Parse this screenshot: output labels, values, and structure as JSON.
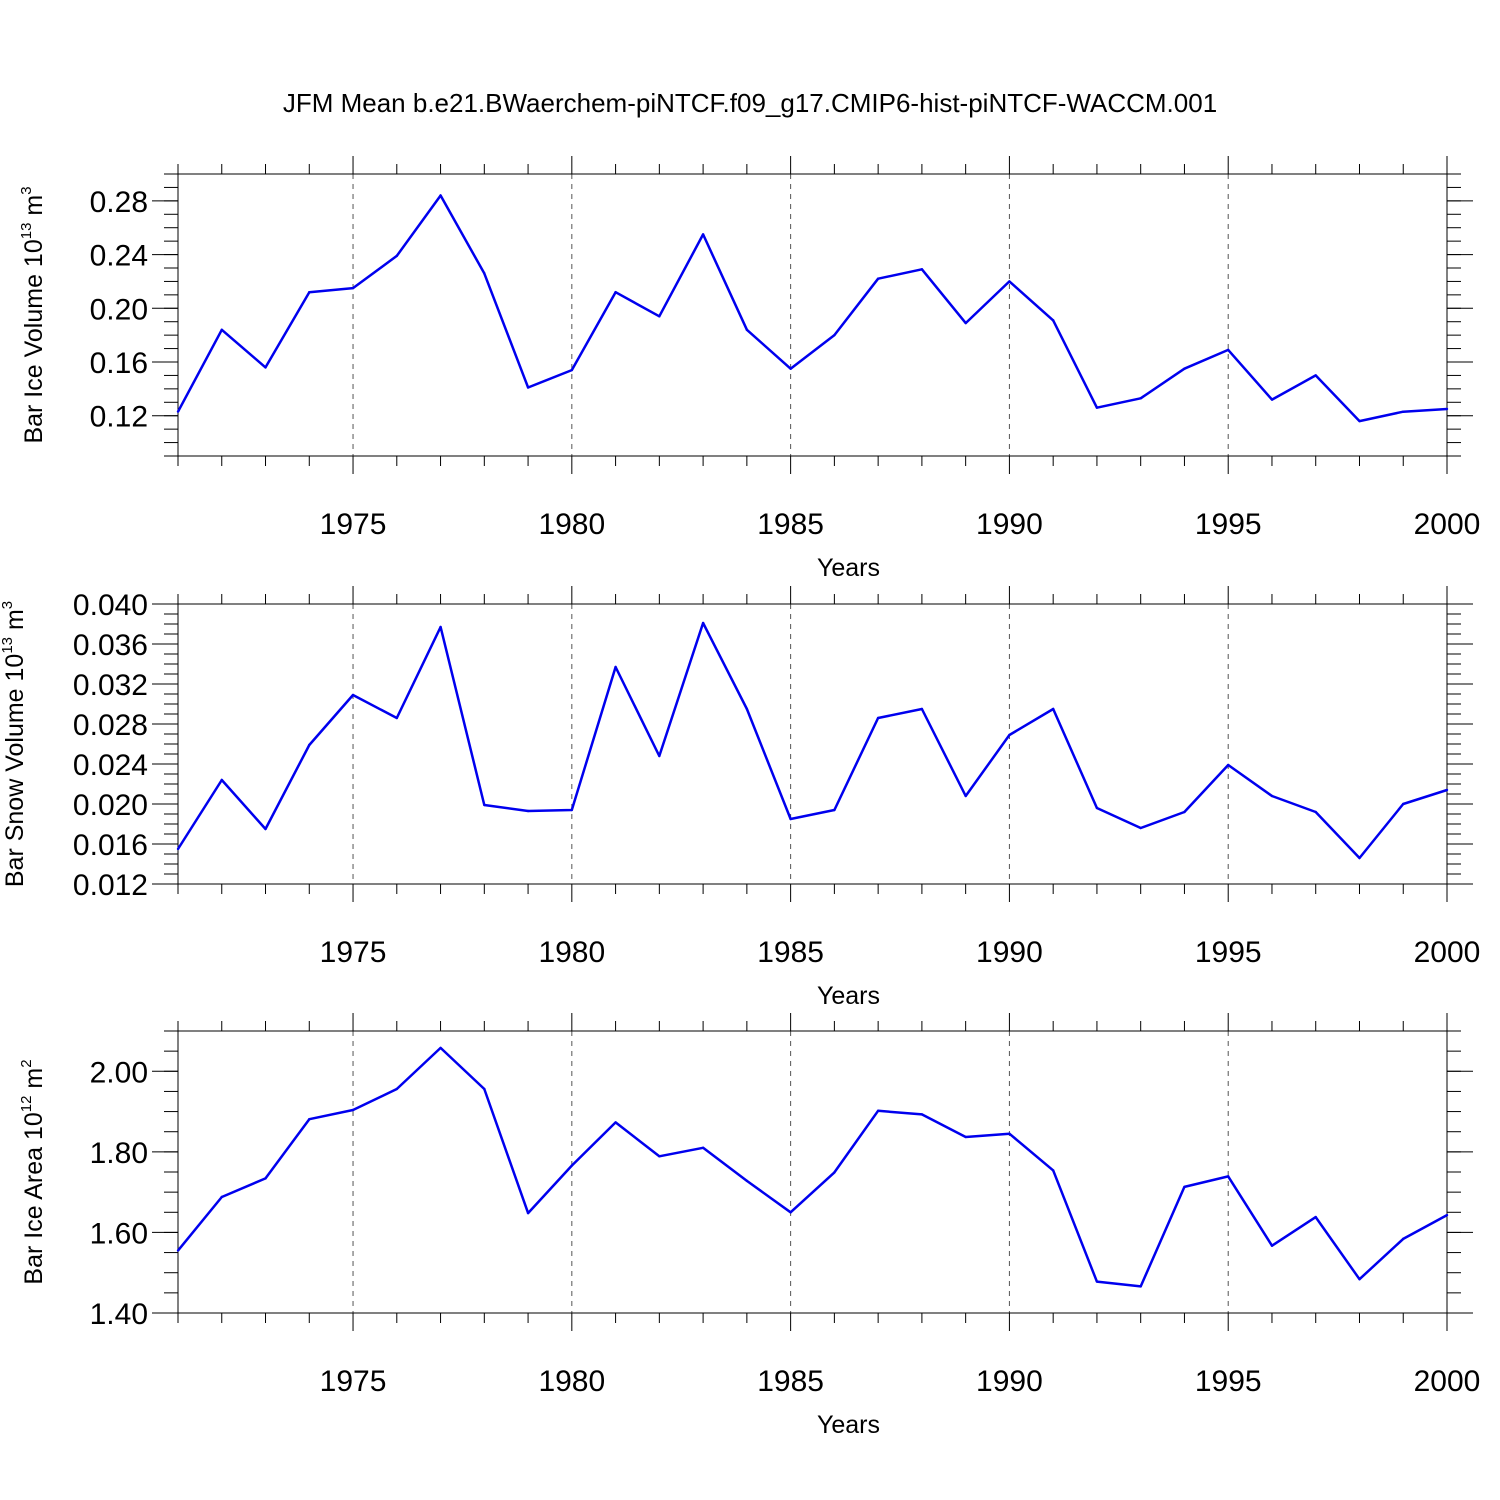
{
  "title": "JFM Mean b.e21.BWaerchem-piNTCF.f09_g17.CMIP6-hist-piNTCF-WACCM.001",
  "colors": {
    "line": "#0000ee",
    "grid": "#555555",
    "axis": "#000000"
  },
  "chart_data": [
    {
      "type": "line",
      "name": "ice-volume",
      "ylabel": "Bar Ice Volume 10",
      "ylabel_exp": "13",
      "ylabel_unit": " m",
      "ylabel_unit_exp": "3",
      "xlabel": "Years",
      "xlim": [
        1971,
        2000
      ],
      "ylim": [
        0.09,
        0.3
      ],
      "yticks": [
        0.12,
        0.16,
        0.2,
        0.24,
        0.28
      ],
      "ytick_labels": [
        "0.12",
        "0.16",
        "0.20",
        "0.24",
        "0.28"
      ],
      "yminor_step": 0.01,
      "xticks": [
        1975,
        1980,
        1985,
        1990,
        1995,
        2000
      ],
      "xtick_labels": [
        "1975",
        "1980",
        "1985",
        "1990",
        "1995",
        "2000"
      ],
      "grid": true,
      "x": [
        1971,
        1972,
        1973,
        1974,
        1975,
        1976,
        1977,
        1978,
        1979,
        1980,
        1981,
        1982,
        1983,
        1984,
        1985,
        1986,
        1987,
        1988,
        1989,
        1990,
        1991,
        1992,
        1993,
        1994,
        1995,
        1996,
        1997,
        1998,
        1999,
        2000
      ],
      "values": [
        0.123,
        0.184,
        0.156,
        0.212,
        0.215,
        0.239,
        0.284,
        0.226,
        0.141,
        0.154,
        0.212,
        0.194,
        0.255,
        0.184,
        0.155,
        0.18,
        0.222,
        0.229,
        0.189,
        0.22,
        0.191,
        0.126,
        0.133,
        0.155,
        0.169,
        0.132,
        0.15,
        0.116,
        0.123,
        0.125
      ]
    },
    {
      "type": "line",
      "name": "snow-volume",
      "ylabel": "Bar Snow Volume 10",
      "ylabel_exp": "13",
      "ylabel_unit": " m",
      "ylabel_unit_exp": "3",
      "xlabel": "Years",
      "xlim": [
        1971,
        2000
      ],
      "ylim": [
        0.012,
        0.04
      ],
      "yticks": [
        0.012,
        0.016,
        0.02,
        0.024,
        0.028,
        0.032,
        0.036,
        0.04
      ],
      "ytick_labels": [
        "0.012",
        "0.016",
        "0.020",
        "0.024",
        "0.028",
        "0.032",
        "0.036",
        "0.040"
      ],
      "yminor_step": 0.001,
      "xticks": [
        1975,
        1980,
        1985,
        1990,
        1995,
        2000
      ],
      "xtick_labels": [
        "1975",
        "1980",
        "1985",
        "1990",
        "1995",
        "2000"
      ],
      "grid": true,
      "x": [
        1971,
        1972,
        1973,
        1974,
        1975,
        1976,
        1977,
        1978,
        1979,
        1980,
        1981,
        1982,
        1983,
        1984,
        1985,
        1986,
        1987,
        1988,
        1989,
        1990,
        1991,
        1992,
        1993,
        1994,
        1995,
        1996,
        1997,
        1998,
        1999,
        2000
      ],
      "values": [
        0.0155,
        0.0224,
        0.0175,
        0.0259,
        0.0309,
        0.0286,
        0.0377,
        0.0199,
        0.0193,
        0.0194,
        0.0337,
        0.0248,
        0.0381,
        0.0295,
        0.0185,
        0.0194,
        0.0286,
        0.0295,
        0.0208,
        0.0269,
        0.0295,
        0.0196,
        0.0176,
        0.0192,
        0.0239,
        0.0208,
        0.0192,
        0.0146,
        0.02,
        0.0214
      ]
    },
    {
      "type": "line",
      "name": "ice-area",
      "ylabel": "Bar Ice Area 10",
      "ylabel_exp": "12",
      "ylabel_unit": " m",
      "ylabel_unit_exp": "2",
      "xlabel": "Years",
      "xlim": [
        1971,
        2000
      ],
      "ylim": [
        1.4,
        2.1
      ],
      "yticks": [
        1.4,
        1.6,
        1.8,
        2.0
      ],
      "ytick_labels": [
        "1.40",
        "1.60",
        "1.80",
        "2.00"
      ],
      "yminor_step": 0.05,
      "xticks": [
        1975,
        1980,
        1985,
        1990,
        1995,
        2000
      ],
      "xtick_labels": [
        "1975",
        "1980",
        "1985",
        "1990",
        "1995",
        "2000"
      ],
      "grid": true,
      "x": [
        1971,
        1972,
        1973,
        1974,
        1975,
        1976,
        1977,
        1978,
        1979,
        1980,
        1981,
        1982,
        1983,
        1984,
        1985,
        1986,
        1987,
        1988,
        1989,
        1990,
        1991,
        1992,
        1993,
        1994,
        1995,
        1996,
        1997,
        1998,
        1999,
        2000
      ],
      "values": [
        1.555,
        1.688,
        1.734,
        1.881,
        1.904,
        1.956,
        2.058,
        1.956,
        1.648,
        1.766,
        1.873,
        1.789,
        1.81,
        1.728,
        1.65,
        1.749,
        1.902,
        1.893,
        1.837,
        1.845,
        1.754,
        1.478,
        1.466,
        1.713,
        1.739,
        1.567,
        1.638,
        1.484,
        1.584,
        1.643
      ]
    }
  ]
}
